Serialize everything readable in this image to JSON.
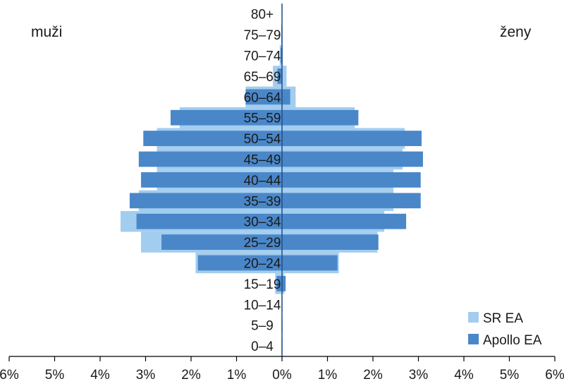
{
  "chart_data": {
    "type": "bar",
    "orientation": "horizontal-population-pyramid",
    "left_label": "muži",
    "right_label": "ženy",
    "categories": [
      "0–4",
      "5–9",
      "10–14",
      "15–19",
      "20–24",
      "25–29",
      "30–34",
      "35–39",
      "40–44",
      "45–49",
      "50–54",
      "55–59",
      "60–64",
      "65–69",
      "70–74",
      "75–79",
      "80+"
    ],
    "x_ticks": [
      "6%",
      "5%",
      "4%",
      "3%",
      "2%",
      "1%",
      "0%",
      "1%",
      "2%",
      "3%",
      "4%",
      "5%",
      "6%"
    ],
    "xlim": [
      -6,
      6
    ],
    "legend_position": "bottom-right",
    "series": [
      {
        "name": "SR EA",
        "color": "#a3cdef",
        "men": [
          0,
          0,
          0,
          0.15,
          1.9,
          3.1,
          3.55,
          3.15,
          2.75,
          2.75,
          2.75,
          2.25,
          0.8,
          0.2,
          0.05,
          0.02,
          0
        ],
        "women": [
          0,
          0,
          0,
          0.05,
          1.25,
          2.1,
          2.25,
          2.45,
          2.45,
          2.65,
          2.7,
          1.6,
          0.3,
          0.1,
          0.02,
          0.01,
          0
        ]
      },
      {
        "name": "Apollo EA",
        "color": "#4a87c9",
        "men": [
          0.01,
          0.01,
          0.01,
          0.12,
          1.85,
          2.65,
          3.2,
          3.35,
          3.1,
          3.15,
          3.05,
          2.45,
          0.8,
          0.1,
          0.03,
          0.01,
          0
        ],
        "women": [
          0.01,
          0.01,
          0.01,
          0.08,
          1.22,
          2.12,
          2.73,
          3.05,
          3.05,
          3.1,
          3.07,
          1.68,
          0.18,
          0.01,
          0.01,
          0.01,
          0.01
        ]
      }
    ]
  }
}
